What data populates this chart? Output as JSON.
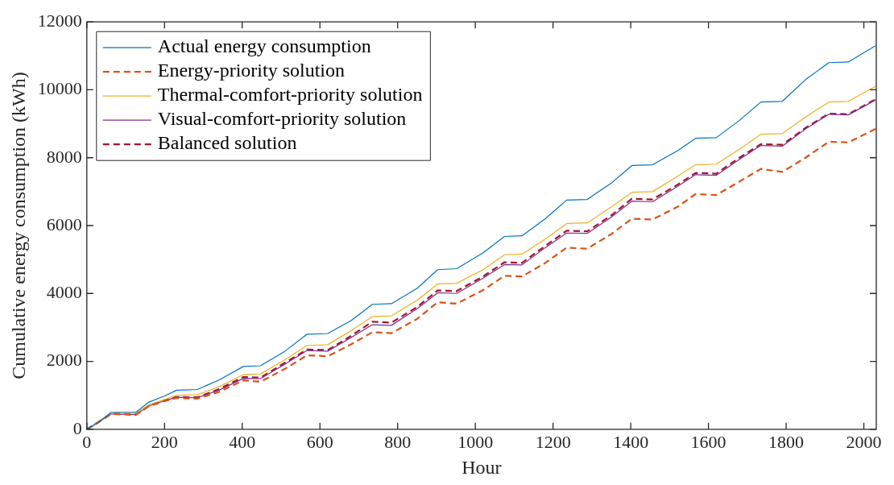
{
  "chart_data": {
    "type": "line",
    "xlabel": "Hour",
    "ylabel": "Cumulative energy consumption (kWh)",
    "x": [
      0,
      20,
      40,
      63,
      126,
      160,
      200,
      231,
      284,
      340,
      403,
      447,
      510,
      567,
      620,
      680,
      735,
      784,
      850,
      903,
      952,
      1020,
      1075,
      1120,
      1180,
      1235,
      1288,
      1350,
      1403,
      1456,
      1520,
      1567,
      1620,
      1680,
      1735,
      1790,
      1850,
      1910,
      1960,
      2030
    ],
    "series": [
      {
        "name": "Actual energy consumption",
        "color": "#0072bd",
        "line_style": "solid",
        "values": [
          0,
          130,
          300,
          500,
          500,
          800,
          980,
          1150,
          1170,
          1450,
          1850,
          1870,
          2300,
          2800,
          2820,
          3200,
          3680,
          3700,
          4150,
          4700,
          4730,
          5200,
          5680,
          5700,
          6200,
          6750,
          6770,
          7250,
          7770,
          7790,
          8200,
          8570,
          8590,
          9100,
          9640,
          9660,
          10300,
          10800,
          10820,
          11300
        ]
      },
      {
        "name": "Energy-priority solution",
        "color": "#d95319",
        "line_style": "dashed",
        "values": [
          0,
          130,
          280,
          450,
          420,
          680,
          830,
          920,
          900,
          1100,
          1440,
          1400,
          1780,
          2180,
          2150,
          2500,
          2860,
          2830,
          3250,
          3740,
          3700,
          4100,
          4520,
          4500,
          4900,
          5350,
          5320,
          5750,
          6200,
          6180,
          6550,
          6930,
          6900,
          7300,
          7670,
          7580,
          8000,
          8470,
          8450,
          8850
        ]
      },
      {
        "name": "Thermal-comfort-priority solution",
        "color": "#edb120",
        "line_style": "solid",
        "values": [
          null,
          170,
          290,
          470,
          470,
          720,
          880,
          1000,
          1020,
          1250,
          1610,
          1630,
          2050,
          2470,
          2490,
          2900,
          3320,
          3340,
          3800,
          4280,
          4300,
          4700,
          5140,
          5160,
          5600,
          6060,
          6080,
          6550,
          6980,
          7000,
          7450,
          7790,
          7810,
          8250,
          8690,
          8710,
          9200,
          9640,
          9660,
          10100
        ]
      },
      {
        "name": "Visual-comfort-priority solution",
        "color": "#7e2f8e",
        "line_style": "solid",
        "values": [
          0,
          140,
          280,
          450,
          430,
          690,
          840,
          940,
          930,
          1150,
          1500,
          1490,
          1920,
          2320,
          2300,
          2700,
          3080,
          3060,
          3550,
          4020,
          4000,
          4450,
          4850,
          4840,
          5350,
          5780,
          5770,
          6250,
          6720,
          6700,
          7150,
          7500,
          7480,
          7950,
          8360,
          8340,
          8850,
          9280,
          9260,
          9700
        ]
      },
      {
        "name": "Balanced solution",
        "color": "#a2142f",
        "line_style": "dashed",
        "values": [
          0,
          140,
          285,
          460,
          440,
          700,
          850,
          950,
          940,
          1180,
          1540,
          1520,
          1960,
          2350,
          2330,
          2750,
          3170,
          3140,
          3600,
          4090,
          4070,
          4500,
          4920,
          4900,
          5400,
          5850,
          5830,
          6300,
          6790,
          6770,
          7200,
          7550,
          7530,
          8000,
          8400,
          8380,
          8880,
          9300,
          9280,
          9720
        ]
      }
    ],
    "xlim": [
      0,
      2032
    ],
    "xticks": [
      0,
      200,
      400,
      600,
      800,
      1000,
      1200,
      1400,
      1600,
      1800,
      2000
    ],
    "ylim": [
      0,
      12000
    ],
    "yticks": [
      0,
      2000,
      4000,
      6000,
      8000,
      10000,
      12000
    ],
    "grid": false,
    "legend": "top left",
    "marker": "none"
  }
}
